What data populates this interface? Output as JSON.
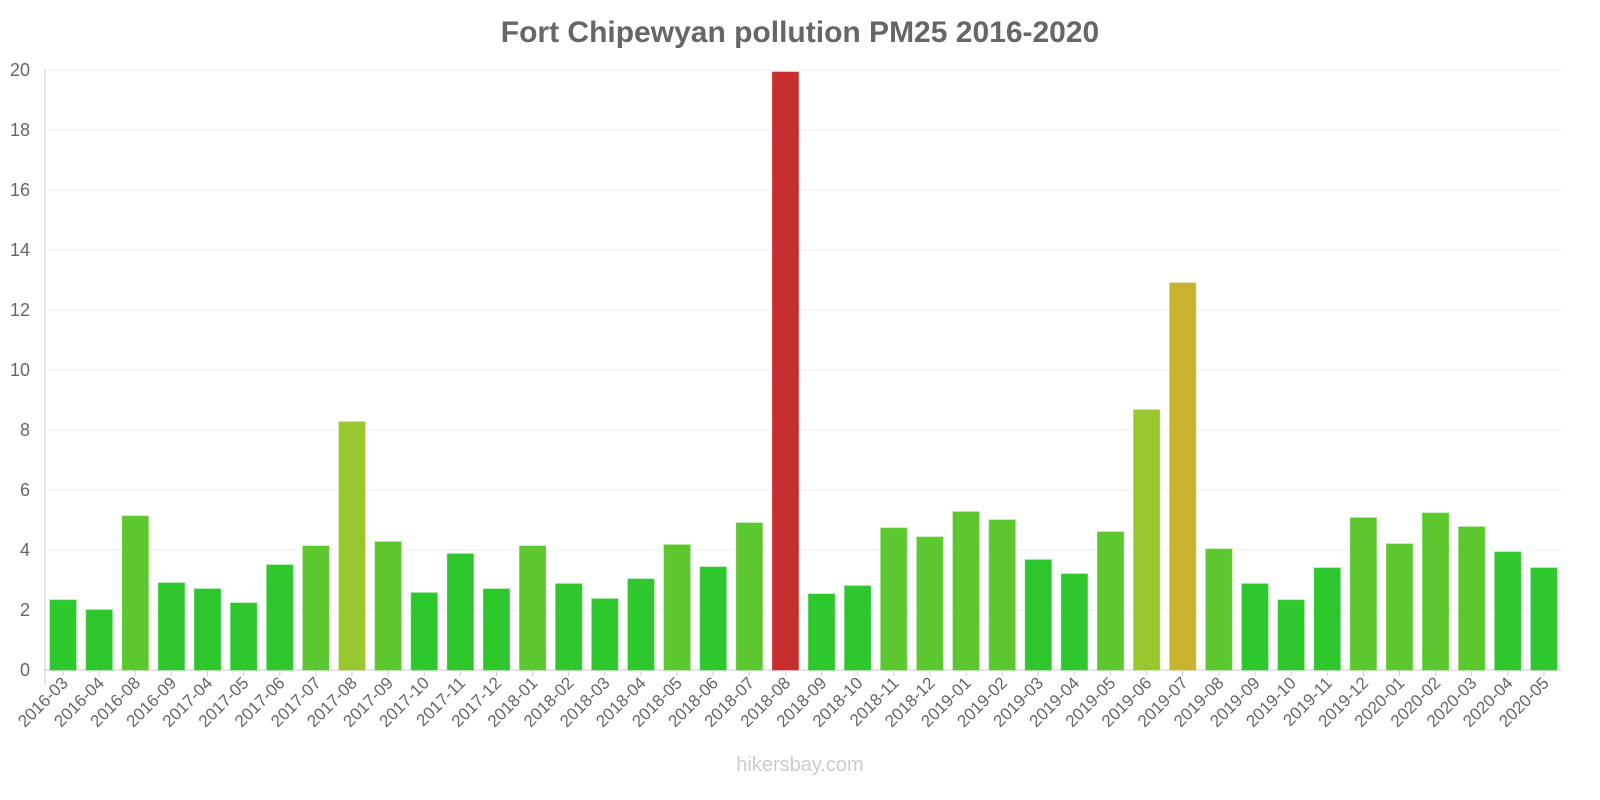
{
  "chart_data": {
    "type": "bar",
    "title": "Fort Chipewyan pollution PM25 2016-2020",
    "xlabel": "",
    "ylabel": "",
    "ylim": [
      0,
      20
    ],
    "yticks": [
      0,
      2,
      4,
      6,
      8,
      10,
      12,
      14,
      16,
      18,
      20
    ],
    "grid": true,
    "categories": [
      "2016-03",
      "2016-04",
      "2016-08",
      "2016-09",
      "2017-04",
      "2017-05",
      "2017-06",
      "2017-07",
      "2017-08",
      "2017-09",
      "2017-10",
      "2017-11",
      "2017-12",
      "2018-01",
      "2018-02",
      "2018-03",
      "2018-04",
      "2018-05",
      "2018-06",
      "2018-07",
      "2018-08",
      "2018-09",
      "2018-10",
      "2018-11",
      "2018-12",
      "2019-01",
      "2019-02",
      "2019-03",
      "2019-04",
      "2019-05",
      "2019-06",
      "2019-07",
      "2019-08",
      "2019-09",
      "2019-10",
      "2019-11",
      "2019-12",
      "2020-01",
      "2020-02",
      "2020-03",
      "2020-04",
      "2020-05"
    ],
    "values": [
      2.33,
      2.0,
      5.13,
      2.9,
      2.7,
      2.23,
      3.5,
      4.13,
      8.27,
      4.27,
      2.57,
      3.87,
      2.7,
      4.13,
      2.87,
      2.37,
      3.03,
      4.17,
      3.43,
      4.9,
      19.93,
      2.53,
      2.8,
      4.73,
      4.43,
      5.27,
      5.0,
      3.67,
      3.2,
      4.6,
      8.67,
      12.9,
      4.03,
      2.87,
      2.33,
      3.4,
      5.07,
      4.2,
      5.23,
      4.77,
      3.93,
      3.4
    ],
    "colors": {
      "good": "#33dd33",
      "moderate": "#66dd33",
      "elevated": "#aadd33",
      "high": "#ddc733",
      "very_high": "#dd3333"
    }
  },
  "footer": "hikersbay.com"
}
